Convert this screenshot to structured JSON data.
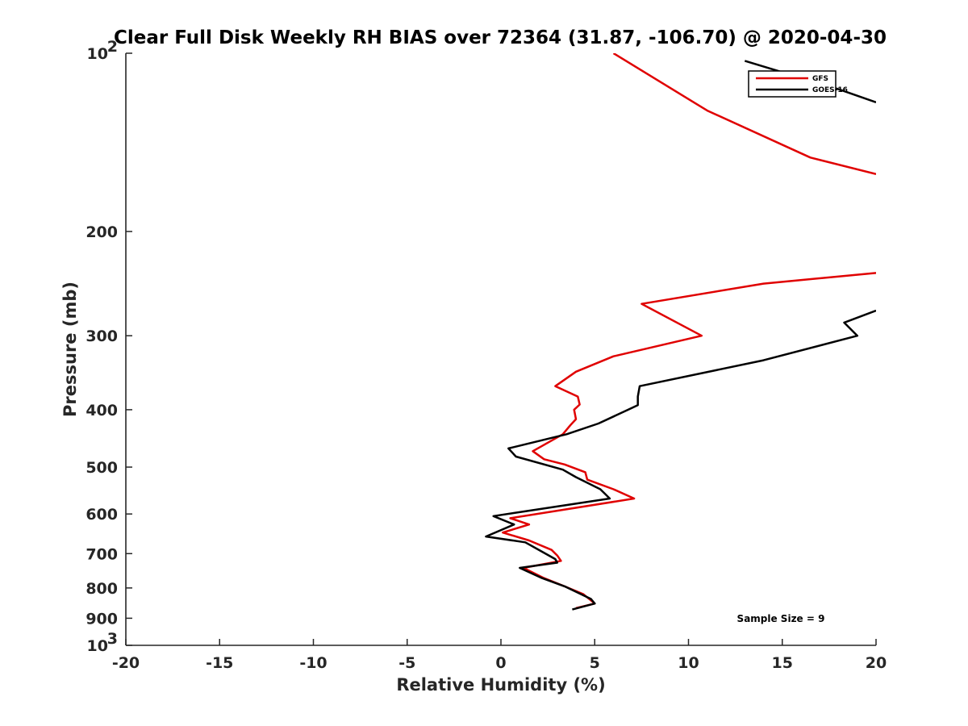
{
  "chart_data": {
    "type": "line",
    "title": "Clear Full Disk Weekly RH BIAS over 72364 (31.87, -106.70) @ 2020-04-30",
    "xlabel": "Relative Humidity (%)",
    "ylabel": "Pressure (mb)",
    "xlim": [
      -20,
      20
    ],
    "ylim": [
      1000,
      100
    ],
    "y_scale": "log",
    "x_ticks": [
      "-20",
      "-15",
      "-10",
      "-5",
      "0",
      "5",
      "10",
      "15",
      "20"
    ],
    "y_tick_values": [
      100,
      200,
      300,
      400,
      500,
      600,
      700,
      800,
      900,
      1000
    ],
    "y_ticks": [
      {
        "base": "10",
        "exp": "2"
      },
      {
        "base": "200",
        "exp": ""
      },
      {
        "base": "300",
        "exp": ""
      },
      {
        "base": "400",
        "exp": ""
      },
      {
        "base": "500",
        "exp": ""
      },
      {
        "base": "600",
        "exp": ""
      },
      {
        "base": "700",
        "exp": ""
      },
      {
        "base": "800",
        "exp": ""
      },
      {
        "base": "900",
        "exp": ""
      },
      {
        "base": "10",
        "exp": "3"
      }
    ],
    "grid": false,
    "legend_position": "top-right",
    "annotation": "Sample Size = 9",
    "series": [
      {
        "name": "GFS",
        "color": "#e00000",
        "segments": [
          [
            [
              6.0,
              100
            ],
            [
              11.0,
              125
            ],
            [
              16.5,
              150
            ],
            [
              20.0,
              160
            ]
          ],
          [
            [
              20.0,
              235
            ],
            [
              14.0,
              245
            ],
            [
              7.5,
              265
            ],
            [
              10.7,
              300
            ],
            [
              6.0,
              325
            ],
            [
              4.0,
              345
            ],
            [
              2.9,
              365
            ],
            [
              4.1,
              380
            ],
            [
              4.2,
              392
            ],
            [
              3.9,
              400
            ],
            [
              4.0,
              415
            ],
            [
              3.7,
              425
            ],
            [
              3.3,
              440
            ],
            [
              1.7,
              470
            ],
            [
              2.3,
              485
            ],
            [
              3.4,
              495
            ],
            [
              4.5,
              510
            ],
            [
              4.6,
              525
            ],
            [
              6.0,
              545
            ],
            [
              7.1,
              565
            ],
            [
              0.5,
              610
            ],
            [
              1.5,
              625
            ],
            [
              0.1,
              645
            ],
            [
              1.5,
              665
            ],
            [
              2.7,
              690
            ],
            [
              3.0,
              705
            ],
            [
              3.2,
              720
            ],
            [
              1.2,
              740
            ],
            [
              2.3,
              770
            ],
            [
              3.4,
              795
            ],
            [
              4.4,
              820
            ],
            [
              5.0,
              850
            ],
            [
              4.0,
              865
            ]
          ]
        ]
      },
      {
        "name": "GOES-16",
        "color": "#000000",
        "segments": [
          [
            [
              13.0,
              103
            ],
            [
              18.0,
              115
            ],
            [
              20.0,
              121
            ]
          ],
          [
            [
              20.0,
              272
            ],
            [
              18.3,
              285
            ],
            [
              19.0,
              300
            ],
            [
              14.0,
              330
            ],
            [
              7.4,
              365
            ],
            [
              7.3,
              380
            ],
            [
              7.3,
              393
            ],
            [
              5.2,
              422
            ],
            [
              3.5,
              440
            ],
            [
              0.4,
              465
            ],
            [
              0.8,
              480
            ],
            [
              3.3,
              505
            ],
            [
              4.0,
              520
            ],
            [
              5.3,
              545
            ],
            [
              5.8,
              565
            ],
            [
              -0.4,
              605
            ],
            [
              0.7,
              625
            ],
            [
              -0.8,
              655
            ],
            [
              1.3,
              670
            ],
            [
              2.2,
              695
            ],
            [
              2.9,
              715
            ],
            [
              3.0,
              725
            ],
            [
              1.0,
              740
            ],
            [
              2.2,
              770
            ],
            [
              3.4,
              795
            ],
            [
              4.8,
              835
            ],
            [
              5.0,
              850
            ],
            [
              3.8,
              870
            ]
          ]
        ]
      }
    ]
  }
}
